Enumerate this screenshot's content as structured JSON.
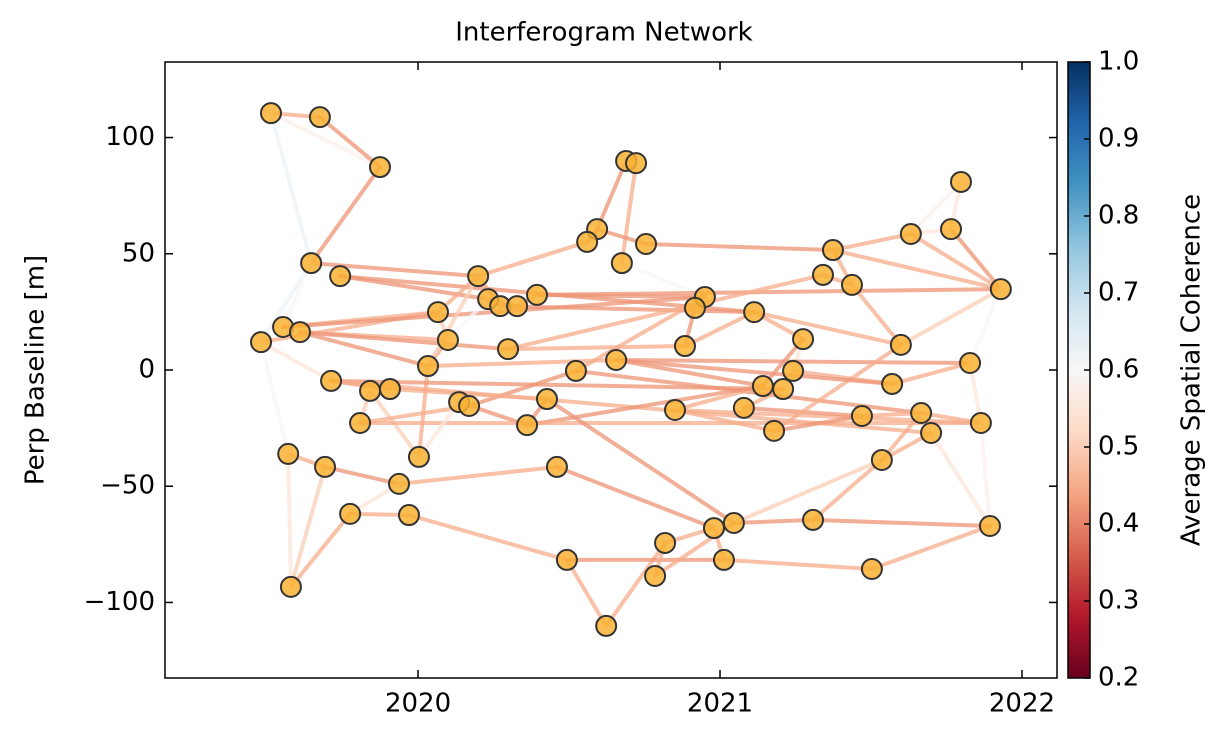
{
  "chart_data": {
    "type": "network",
    "title": "Interferogram Network",
    "ylabel": "Perp Baseline [m]",
    "colorbar_label": "Average Spatial Coherence",
    "colormap": "RdBu",
    "xlim": [
      2019.162,
      2022.116
    ],
    "xticks": [
      2020,
      2021,
      2022
    ],
    "ylim": [
      -132.5,
      132.5
    ],
    "yticks": [
      {
        "value": -100,
        "label": "−100"
      },
      {
        "value": -50,
        "label": "−50"
      },
      0,
      50,
      100
    ],
    "clim": [
      0.2,
      1.0
    ],
    "cticks": [
      0.2,
      0.3,
      0.4,
      0.5,
      0.6,
      0.7,
      0.8,
      0.9,
      {
        "value": 1,
        "label": "1.0"
      }
    ],
    "node_color": "#f9b233",
    "nodes": {
      "x": [
        2019.513,
        2019.675,
        2019.874,
        2020.689,
        2020.722,
        2021.798,
        2020.593,
        2020.56,
        2020.755,
        2020.675,
        2021.632,
        2021.765,
        2021.374,
        2019.646,
        2019.742,
        2020.199,
        2021.341,
        2021.437,
        2021.93,
        2020.394,
        2020.232,
        2020.272,
        2020.328,
        2020.95,
        2020.917,
        2021.113,
        2020.066,
        2019.553,
        2019.609,
        2019.48,
        2020.099,
        2021.275,
        2020.298,
        2020.884,
        2021.599,
        2021.828,
        2020.033,
        2020.656,
        2020.523,
        2021.242,
        2019.712,
        2021.142,
        2021.57,
        2019.841,
        2019.907,
        2021.209,
        2020.136,
        2020.169,
        2020.427,
        2020.851,
        2021.079,
        2021.47,
        2021.666,
        2019.808,
        2020.361,
        2021.864,
        2021.179,
        2021.699,
        2020.003,
        2019.57,
        2019.692,
        2021.536,
        2020.46,
        2019.937,
        2019.775,
        2019.97,
        2021.308,
        2021.046,
        2020.98,
        2021.894,
        2020.818,
        2021.013,
        2020.493,
        2021.503,
        2020.785,
        2019.579,
        2020.623
      ],
      "y": [
        110.5,
        108.8,
        87.3,
        89.9,
        89.0,
        80.9,
        60.6,
        55.1,
        54.2,
        46.0,
        58.5,
        60.6,
        51.6,
        46.0,
        40.4,
        40.4,
        40.9,
        36.6,
        34.8,
        32.3,
        30.5,
        27.5,
        27.5,
        31.4,
        26.7,
        24.9,
        24.9,
        18.5,
        16.3,
        12.0,
        12.9,
        13.3,
        9.0,
        10.3,
        10.8,
        3.0,
        1.7,
        4.3,
        -0.4,
        -0.4,
        -4.7,
        -6.9,
        -6.0,
        -9.0,
        -8.2,
        -8.2,
        -13.8,
        -15.5,
        -12.5,
        -17.2,
        -16.3,
        -19.8,
        -18.5,
        -22.8,
        -23.7,
        -22.8,
        -26.2,
        -27.1,
        -37.4,
        -36.1,
        -41.7,
        -38.7,
        -41.7,
        -49.0,
        -61.9,
        -62.4,
        -64.5,
        -65.8,
        -68.0,
        -67.1,
        -74.4,
        -81.7,
        -81.7,
        -85.6,
        -88.6,
        -93.3,
        -110.1
      ]
    },
    "edges": {
      "from": [
        0,
        0,
        0,
        1,
        2,
        3,
        4,
        6,
        6,
        8,
        7,
        9,
        12,
        10,
        11,
        5,
        5,
        10,
        12,
        12,
        13,
        13,
        13,
        14,
        14,
        15,
        19,
        19,
        16,
        17,
        18,
        18,
        29,
        29,
        27,
        27,
        28,
        28,
        28,
        29,
        26,
        30,
        30,
        20,
        22,
        21,
        32,
        32,
        33,
        24,
        25,
        25,
        33,
        31,
        36,
        36,
        36,
        37,
        37,
        38,
        38,
        38,
        39,
        41,
        42,
        40,
        40,
        40,
        43,
        44,
        43,
        46,
        48,
        54,
        49,
        50,
        50,
        51,
        52,
        53,
        56,
        56,
        57,
        55,
        55,
        59,
        59,
        60,
        63,
        62,
        63,
        64,
        65,
        64,
        60,
        72,
        76,
        70,
        68,
        72,
        71,
        73,
        67,
        66,
        66,
        61,
        61,
        74,
        74,
        47,
        57,
        46,
        49,
        37,
        15,
        31,
        67
      ],
      "to": [
        1,
        2,
        13,
        2,
        13,
        6,
        9,
        7,
        8,
        12,
        15,
        23,
        10,
        11,
        18,
        10,
        11,
        18,
        18,
        17,
        15,
        27,
        29,
        20,
        25,
        21,
        23,
        18,
        17,
        34,
        34,
        35,
        26,
        40,
        26,
        23,
        30,
        36,
        32,
        59,
        30,
        36,
        20,
        22,
        19,
        25,
        33,
        16,
        24,
        23,
        31,
        34,
        25,
        39,
        15,
        37,
        58,
        35,
        41,
        47,
        23,
        52,
        42,
        49,
        35,
        44,
        45,
        57,
        58,
        48,
        53,
        54,
        54,
        41,
        55,
        51,
        45,
        52,
        55,
        55,
        51,
        34,
        69,
        69,
        35,
        60,
        75,
        63,
        62,
        68,
        64,
        65,
        72,
        75,
        75,
        76,
        70,
        68,
        71,
        71,
        73,
        69,
        66,
        69,
        61,
        52,
        67,
        67,
        70,
        53,
        61,
        58,
        56,
        42,
        26,
        41,
        48
      ],
      "coherence": [
        0.45,
        0.58,
        0.62,
        0.42,
        0.42,
        0.42,
        0.45,
        0.42,
        0.42,
        0.42,
        0.45,
        0.6,
        0.45,
        0.55,
        0.42,
        0.58,
        0.55,
        0.45,
        0.45,
        0.45,
        0.42,
        0.6,
        0.62,
        0.42,
        0.42,
        0.45,
        0.42,
        0.42,
        0.45,
        0.45,
        0.5,
        0.6,
        0.45,
        0.55,
        0.45,
        0.42,
        0.45,
        0.42,
        0.42,
        0.6,
        0.5,
        0.45,
        0.6,
        0.45,
        0.45,
        0.42,
        0.45,
        0.45,
        0.42,
        0.5,
        0.45,
        0.45,
        0.45,
        0.55,
        0.5,
        0.45,
        0.45,
        0.42,
        0.42,
        0.42,
        0.45,
        0.42,
        0.45,
        0.45,
        0.45,
        0.42,
        0.42,
        0.45,
        0.5,
        0.45,
        0.5,
        0.42,
        0.42,
        0.42,
        0.45,
        0.42,
        0.45,
        0.45,
        0.45,
        0.45,
        0.42,
        0.45,
        0.55,
        0.58,
        0.55,
        0.45,
        0.55,
        0.42,
        0.45,
        0.42,
        0.55,
        0.45,
        0.45,
        0.45,
        0.5,
        0.45,
        0.45,
        0.45,
        0.45,
        0.42,
        0.45,
        0.45,
        0.42,
        0.42,
        0.45,
        0.45,
        0.5,
        0.45,
        0.45,
        0.45,
        0.45,
        0.55,
        0.45,
        0.42,
        0.45,
        0.42,
        0.42
      ]
    }
  }
}
